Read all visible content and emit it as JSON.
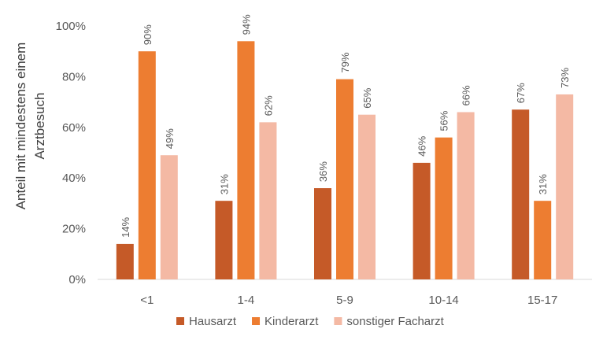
{
  "chart_data": {
    "type": "bar",
    "ylabel_lines": [
      "Anteil mit mindestens einem",
      "Arztbesuch"
    ],
    "xlabel": "",
    "ylim": [
      0,
      100
    ],
    "yticks": [
      0,
      20,
      40,
      60,
      80,
      100
    ],
    "ytick_labels": [
      "0%",
      "20%",
      "40%",
      "60%",
      "80%",
      "100%"
    ],
    "categories": [
      "<1",
      "1-4",
      "5-9",
      "10-14",
      "15-17"
    ],
    "series": [
      {
        "name": "Hausarzt",
        "color": "#C55A28",
        "values": [
          14,
          31,
          36,
          46,
          67
        ],
        "labels": [
          "14%",
          "31%",
          "36%",
          "46%",
          "67%"
        ]
      },
      {
        "name": "Kinderarzt",
        "color": "#ED7D31",
        "values": [
          90,
          94,
          79,
          56,
          31
        ],
        "labels": [
          "90%",
          "94%",
          "79%",
          "56%",
          "31%"
        ]
      },
      {
        "name": "sonstiger Facharzt",
        "color": "#F4B9A4",
        "values": [
          49,
          62,
          65,
          66,
          73
        ],
        "labels": [
          "49%",
          "62%",
          "65%",
          "66%",
          "73%"
        ]
      }
    ],
    "grid": false,
    "legend_position": "bottom",
    "data_label_orientation": "rotated"
  }
}
